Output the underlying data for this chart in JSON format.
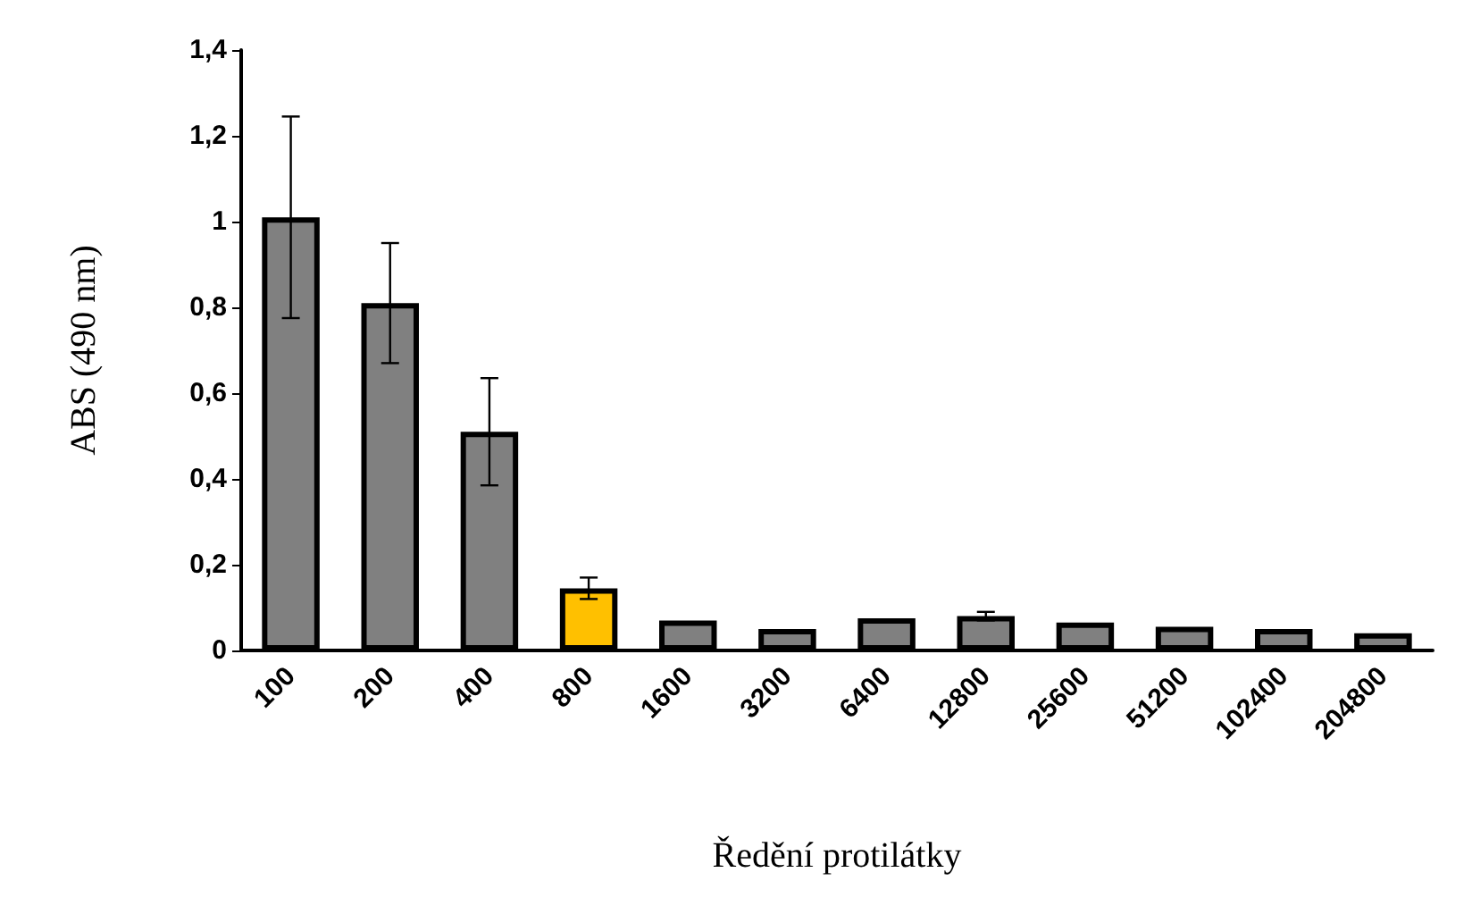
{
  "chart_data": {
    "type": "bar",
    "xlabel": "Ředění protilátky",
    "ylabel": "ABS (490 nm)",
    "categories": [
      "100",
      "200",
      "400",
      "800",
      "1600",
      "3200",
      "6400",
      "12800",
      "25600",
      "51200",
      "102400",
      "204800"
    ],
    "values": [
      1.01,
      0.81,
      0.51,
      0.145,
      0.07,
      0.05,
      0.075,
      0.08,
      0.065,
      0.055,
      0.05,
      0.04
    ],
    "colors": [
      "#808080",
      "#808080",
      "#808080",
      "#ffc000",
      "#808080",
      "#808080",
      "#808080",
      "#808080",
      "#808080",
      "#808080",
      "#808080",
      "#808080"
    ],
    "errors": [
      0.235,
      0.14,
      0.125,
      0.025,
      null,
      null,
      null,
      0.01,
      null,
      null,
      null,
      null
    ],
    "ylim": [
      0,
      1.4
    ],
    "yticks": [
      {
        "value": 0,
        "label": "0"
      },
      {
        "value": 0.2,
        "label": "0,2"
      },
      {
        "value": 0.4,
        "label": "0,4"
      },
      {
        "value": 0.6,
        "label": "0,6"
      },
      {
        "value": 0.8,
        "label": "0,8"
      },
      {
        "value": 1,
        "label": "1"
      },
      {
        "value": 1.2,
        "label": "1,2"
      },
      {
        "value": 1.4,
        "label": "1,4"
      }
    ],
    "grid": false
  }
}
